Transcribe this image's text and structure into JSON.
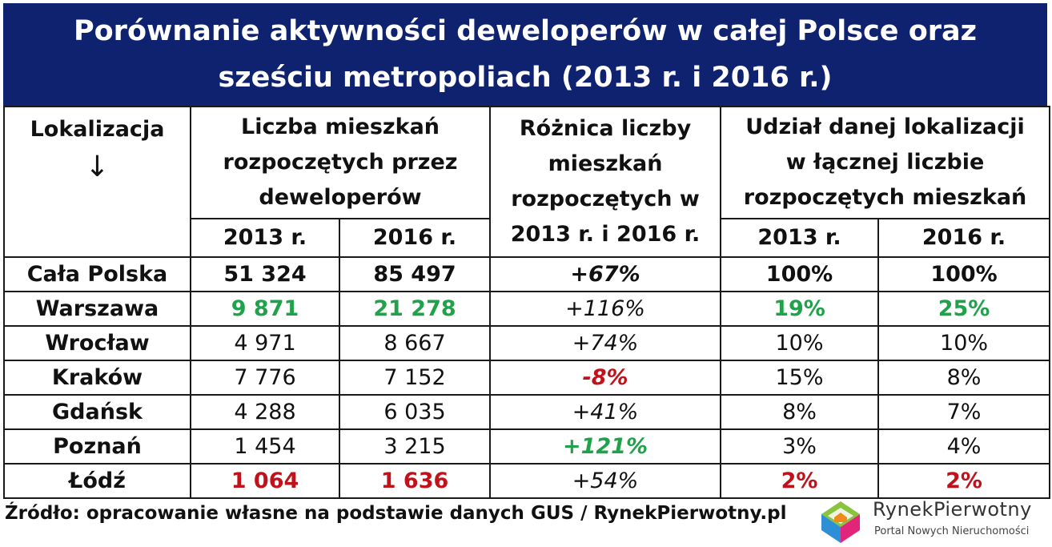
{
  "title": {
    "line1": "Porównanie aktywności deweloperów w całej Polsce oraz",
    "line2": "sześciu metropoliach (2013 r. i 2016 r.)"
  },
  "headers": {
    "location": "Lokalizacja",
    "location_arrow": "↓",
    "count_l1": "Liczba mieszkań",
    "count_l2": "rozpoczętych przez",
    "count_l3": "deweloperów",
    "diff_l1": "Różnica liczby",
    "diff_l2": "mieszkań",
    "diff_l3": "rozpoczętych w",
    "diff_l4": "2013 r. i 2016 r.",
    "share_l1": "Udział danej lokalizacji",
    "share_l2": "w łącznej liczbie",
    "share_l3": "rozpoczętych mieszkań",
    "year_2013": "2013 r.",
    "year_2016": "2016 r."
  },
  "rows": [
    {
      "name": "Cała Polska",
      "c2013": "51 324",
      "c2016": "85 497",
      "diff": "+67%",
      "s2013": "100%",
      "s2016": "100%"
    },
    {
      "name": "Warszawa",
      "c2013": "9 871",
      "c2016": "21 278",
      "diff": "+116%",
      "s2013": "19%",
      "s2016": "25%"
    },
    {
      "name": "Wrocław",
      "c2013": "4 971",
      "c2016": "8 667",
      "diff": "+74%",
      "s2013": "10%",
      "s2016": "10%"
    },
    {
      "name": "Kraków",
      "c2013": "7 776",
      "c2016": "7 152",
      "diff": "-8%",
      "s2013": "15%",
      "s2016": "8%"
    },
    {
      "name": "Gdańsk",
      "c2013": "4 288",
      "c2016": "6 035",
      "diff": "+41%",
      "s2013": "8%",
      "s2016": "7%"
    },
    {
      "name": "Poznań",
      "c2013": "1 454",
      "c2016": "3 215",
      "diff": "+121%",
      "s2013": "3%",
      "s2016": "4%"
    },
    {
      "name": "Łódź",
      "c2013": "1 064",
      "c2016": "1 636",
      "diff": "+54%",
      "s2013": "2%",
      "s2016": "2%"
    }
  ],
  "footer": {
    "source": "Źródło: opracowanie własne na podstawie danych GUS / RynekPierwotny.pl"
  },
  "logo": {
    "name": "RynekPierwotny",
    "tagline": "Portal Nowych Nieruchomości"
  },
  "colors": {
    "title_bg": "#0f2270",
    "highlight_green": "#1fa24a",
    "highlight_red": "#c0121b"
  }
}
